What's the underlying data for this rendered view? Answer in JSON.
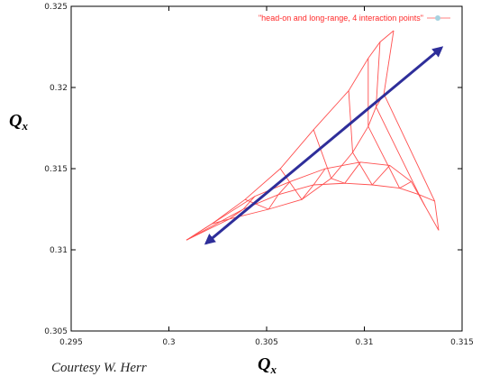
{
  "chart_data": {
    "type": "line",
    "title": "",
    "xlabel": "Q",
    "xlabel_sub": "x",
    "ylabel": "Q",
    "ylabel_sub": "x",
    "xlim": [
      0.295,
      0.315
    ],
    "ylim": [
      0.305,
      0.325
    ],
    "x_ticks": [
      0.295,
      0.3,
      0.305,
      0.31,
      0.315
    ],
    "x_tick_labels": [
      "0.295",
      "0.3",
      "0.305",
      "0.31",
      "0.315"
    ],
    "y_ticks": [
      0.305,
      0.31,
      0.315,
      0.32,
      0.325
    ],
    "y_tick_labels": [
      "0.305",
      "0.31",
      "0.315",
      "0.32",
      "0.325"
    ],
    "legend": {
      "label": "\"head-on and long-range, 4 interaction points\"",
      "position": "top-right"
    },
    "series_color": "#ff5050",
    "arrow_color": "#2e2e9a",
    "grid_rows": [
      [
        [
          0.3009,
          0.3106
        ],
        [
          0.3022,
          0.3116
        ],
        [
          0.3039,
          0.3131
        ],
        [
          0.3057,
          0.315
        ],
        [
          0.3074,
          0.3174
        ],
        [
          0.3092,
          0.3198
        ],
        [
          0.3102,
          0.3218
        ],
        [
          0.3108,
          0.3228
        ],
        [
          0.3115,
          0.3235
        ]
      ],
      [
        [
          0.3009,
          0.3106
        ],
        [
          0.3031,
          0.3119
        ],
        [
          0.3051,
          0.3125
        ],
        [
          0.3068,
          0.3131
        ],
        [
          0.3083,
          0.3144
        ],
        [
          0.3094,
          0.316
        ],
        [
          0.3102,
          0.3176
        ],
        [
          0.3106,
          0.3188
        ],
        [
          0.311,
          0.3196
        ]
      ],
      [
        [
          0.3009,
          0.3106
        ],
        [
          0.3038,
          0.3125
        ],
        [
          0.3056,
          0.3134
        ],
        [
          0.3074,
          0.314
        ],
        [
          0.309,
          0.3141
        ],
        [
          0.3104,
          0.314
        ],
        [
          0.3118,
          0.3138
        ],
        [
          0.3128,
          0.3134
        ],
        [
          0.3136,
          0.313
        ]
      ],
      [
        [
          0.3009,
          0.3106
        ],
        [
          0.3044,
          0.3133
        ],
        [
          0.3062,
          0.3142
        ],
        [
          0.308,
          0.315
        ],
        [
          0.3098,
          0.3154
        ],
        [
          0.3113,
          0.3152
        ],
        [
          0.3124,
          0.3142
        ],
        [
          0.3131,
          0.3127
        ],
        [
          0.3138,
          0.3112
        ]
      ]
    ],
    "arrow": {
      "from": [
        0.3137,
        0.3222
      ],
      "to": [
        0.3019,
        0.3104
      ]
    },
    "credit": "Courtesy W. Herr"
  }
}
